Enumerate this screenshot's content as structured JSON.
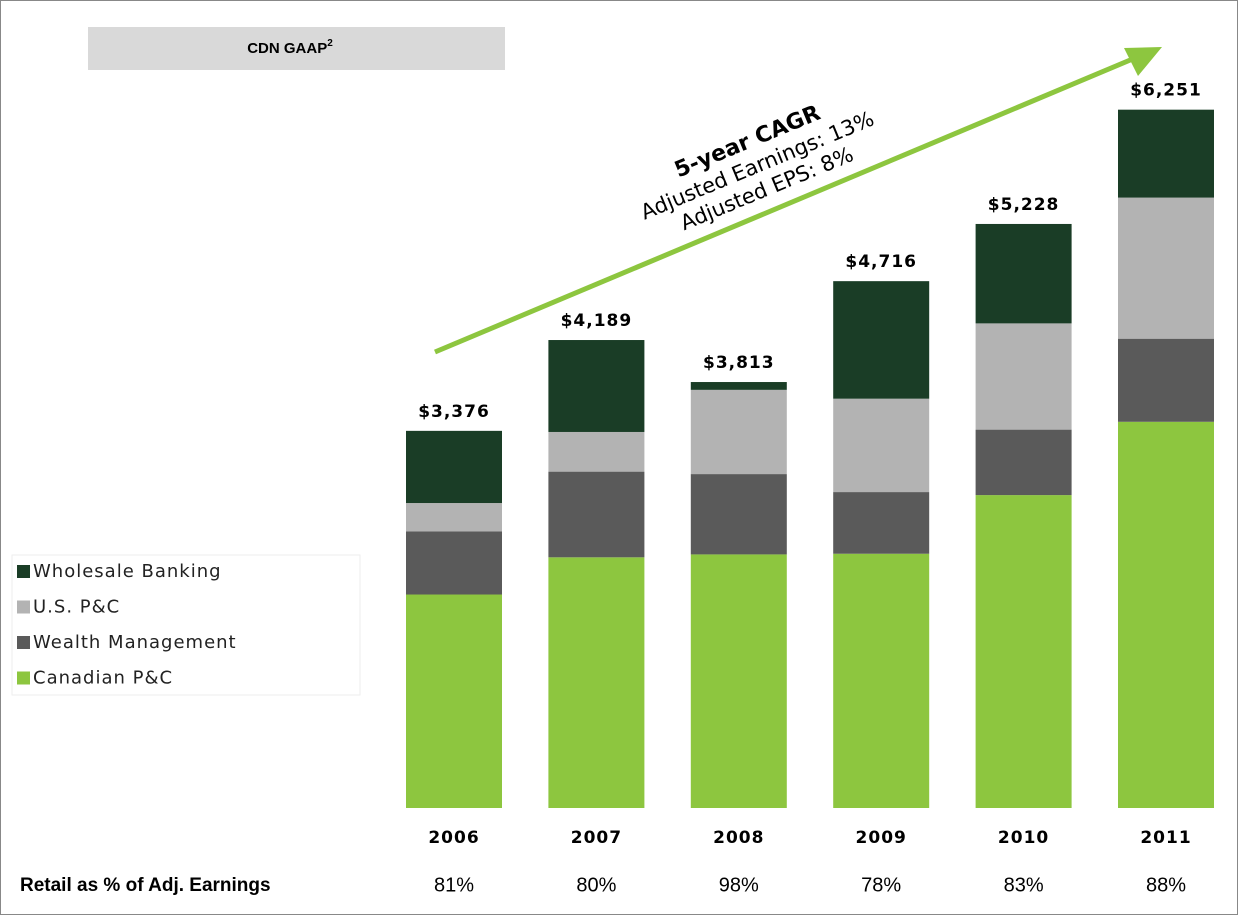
{
  "chart_data": {
    "type": "stacked_bar",
    "badge": {
      "text": "CDN GAAP",
      "superscript": "2"
    },
    "categories": [
      "2006",
      "2007",
      "2008",
      "2009",
      "2010",
      "2011"
    ],
    "series": [
      {
        "name": "Canadian P&C",
        "color": "#8dc63f",
        "values": [
          1911,
          2244,
          2270,
          2276,
          2801,
          3457
        ]
      },
      {
        "name": "Wealth Management",
        "color": "#5a5a5a",
        "values": [
          564,
          767,
          719,
          552,
          586,
          744
        ]
      },
      {
        "name": "U.S. P&C",
        "color": "#b3b3b3",
        "values": [
          255,
          355,
          754,
          836,
          951,
          1263
        ]
      },
      {
        "name": "Wholesale Banking",
        "color": "#1a3d26",
        "values": [
          646,
          823,
          70,
          1052,
          890,
          787
        ]
      }
    ],
    "totals": [
      3376,
      4189,
      3813,
      4716,
      5228,
      6251
    ],
    "total_labels": [
      "$3,376",
      "$4,189",
      "$3,813",
      "$4,716",
      "$5,228",
      "$6,251"
    ],
    "ylim": [
      0,
      7000
    ],
    "annotation": {
      "title": "5-year CAGR",
      "lines": [
        "Adjusted Earnings: 13%",
        "Adjusted EPS: 8%"
      ],
      "color": "#8dc63f"
    },
    "retail_label": "Retail as % of Adj. Earnings",
    "retail_values": [
      81,
      80,
      98,
      78,
      83,
      88
    ],
    "retail_value_labels": [
      "81%",
      "80%",
      "98%",
      "78%",
      "83%",
      "88%"
    ]
  }
}
